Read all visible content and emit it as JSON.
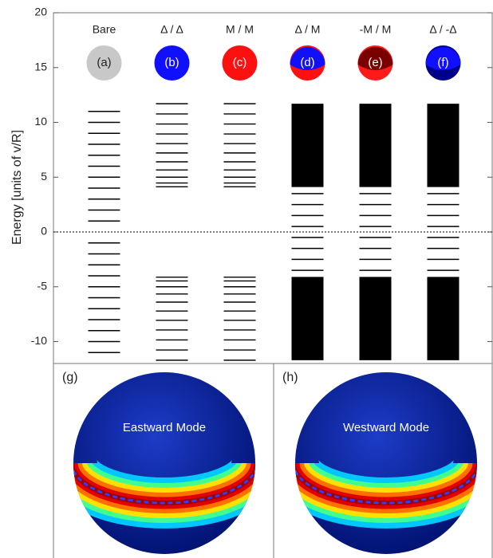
{
  "chart_data": {
    "type": "levels",
    "y_label": "Energy [units of v/R]",
    "ylim": [
      -12,
      20
    ],
    "yticks": [
      -10,
      -5,
      0,
      5,
      10,
      15,
      20
    ],
    "reference_line": 0,
    "columns": [
      {
        "name": "Bare",
        "label": "(a)",
        "colors": [
          "#c8c8c8"
        ],
        "levels": [
          1,
          2,
          3,
          4,
          5,
          6,
          7,
          8,
          9,
          10,
          11,
          -1,
          -2,
          -3,
          -4,
          -5,
          -6,
          -7,
          -8,
          -9,
          -10,
          -11
        ],
        "bands": []
      },
      {
        "name": "Δ / Δ",
        "label": "(b)",
        "colors": [
          "#1010ff"
        ],
        "levels": [
          4.12,
          4.47,
          5,
          5.66,
          6.4,
          7.21,
          8.06,
          8.94,
          9.85,
          10.77,
          11.7,
          -4.12,
          -4.47,
          -5,
          -5.66,
          -6.4,
          -7.21,
          -8.06,
          -8.94,
          -9.85,
          -10.77,
          -11.7
        ],
        "bands": []
      },
      {
        "name": "M / M",
        "label": "(c)",
        "colors": [
          "#ff1010"
        ],
        "levels": [
          4.12,
          4.47,
          5,
          5.66,
          6.4,
          7.21,
          8.06,
          8.94,
          9.85,
          10.77,
          11.7,
          -4.12,
          -4.47,
          -5,
          -5.66,
          -6.4,
          -7.21,
          -8.06,
          -8.94,
          -9.85,
          -10.77,
          -11.7
        ],
        "bands": []
      },
      {
        "name": "Δ / M",
        "label": "(d)",
        "colors": [
          "#1010ff",
          "#ff1010"
        ],
        "levels": [
          0.5,
          1.5,
          2.5,
          3.5,
          -0.5,
          -1.5,
          -2.5,
          -3.5
        ],
        "bands": [
          [
            4.1,
            11.7
          ],
          [
            -11.7,
            -4.1
          ]
        ]
      },
      {
        "name": "-M / M",
        "label": "(e)",
        "colors": [
          "#7a0000",
          "#ff1a1a"
        ],
        "levels": [
          0.5,
          1.5,
          2.5,
          3.5,
          -0.5,
          -1.5,
          -2.5,
          -3.5
        ],
        "bands": [
          [
            4.1,
            11.7
          ],
          [
            -11.7,
            -4.1
          ]
        ]
      },
      {
        "name": "Δ / -Δ",
        "label": "(f)",
        "colors": [
          "#1010ff",
          "#00008b"
        ],
        "levels": [
          0.5,
          1.5,
          2.5,
          3.5,
          -0.5,
          -1.5,
          -2.5,
          -3.5
        ],
        "bands": [
          [
            4.1,
            11.7
          ],
          [
            -11.7,
            -4.1
          ]
        ]
      }
    ]
  },
  "panels": [
    {
      "label": "(g)",
      "title": "Eastward Mode"
    },
    {
      "label": "(h)",
      "title": "Westward Mode"
    }
  ]
}
